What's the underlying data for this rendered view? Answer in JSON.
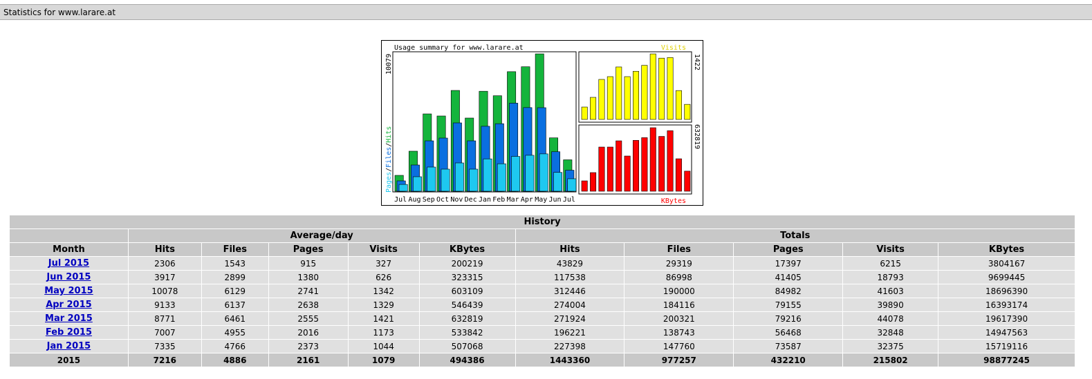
{
  "header": {
    "title": "Statistics for www.larare.at"
  },
  "chart_data": [
    {
      "type": "bar",
      "title": "Usage summary for www.larare.at",
      "separator": "/",
      "categories": [
        "Jul",
        "Aug",
        "Sep",
        "Oct",
        "Nov",
        "Dec",
        "Jan",
        "Feb",
        "Mar",
        "Apr",
        "May",
        "Jun",
        "Jul"
      ],
      "series": [
        {
          "name": "Hits",
          "color": "#14b43c",
          "values": [
            1165,
            2938,
            5673,
            5521,
            7395,
            5369,
            7335,
            7007,
            8771,
            9133,
            10078,
            3917,
            2306
          ]
        },
        {
          "name": "Files",
          "color": "#0a6fe0",
          "values": [
            760,
            1925,
            3697,
            3900,
            5014,
            3697,
            4766,
            4955,
            6461,
            6137,
            6129,
            2899,
            1543
          ]
        },
        {
          "name": "Pages",
          "color": "#1ec8f0",
          "values": [
            500,
            1064,
            1773,
            1621,
            2077,
            1621,
            2373,
            2016,
            2555,
            2638,
            2741,
            1380,
            915
          ]
        }
      ],
      "ylim": [
        0,
        10079
      ]
    },
    {
      "type": "bar",
      "series": [
        {
          "name": "Visits",
          "color": "#ffff00",
          "values": [
            269,
            479,
            868,
            928,
            1138,
            928,
            1044,
            1173,
            1421,
            1329,
            1342,
            626,
            327
          ]
        }
      ],
      "ylim": [
        0,
        1422
      ]
    },
    {
      "type": "bar",
      "series": [
        {
          "name": "KBytes",
          "color": "#ff0000",
          "values": [
            103177,
            185718,
            440220,
            440220,
            502128,
            350810,
            507068,
            533842,
            632819,
            546439,
            603109,
            323315,
            200219
          ]
        }
      ],
      "ylim": [
        0,
        632819
      ]
    }
  ],
  "table": {
    "title": "History",
    "groups": [
      "Average/day",
      "Totals"
    ],
    "columns": [
      "Month",
      "Hits",
      "Files",
      "Pages",
      "Visits",
      "KBytes",
      "Hits",
      "Files",
      "Pages",
      "Visits",
      "KBytes"
    ],
    "rows": [
      [
        "Jul 2015",
        2306,
        1543,
        915,
        327,
        200219,
        43829,
        29319,
        17397,
        6215,
        3804167
      ],
      [
        "Jun 2015",
        3917,
        2899,
        1380,
        626,
        323315,
        117538,
        86998,
        41405,
        18793,
        9699445
      ],
      [
        "May 2015",
        10078,
        6129,
        2741,
        1342,
        603109,
        312446,
        190000,
        84982,
        41603,
        18696390
      ],
      [
        "Apr 2015",
        9133,
        6137,
        2638,
        1329,
        546439,
        274004,
        184116,
        79155,
        39890,
        16393174
      ],
      [
        "Mar 2015",
        8771,
        6461,
        2555,
        1421,
        632819,
        271924,
        200321,
        79216,
        44078,
        19617390
      ],
      [
        "Feb 2015",
        7007,
        4955,
        2016,
        1173,
        533842,
        196221,
        138743,
        56468,
        32848,
        14947563
      ],
      [
        "Jan 2015",
        7335,
        4766,
        2373,
        1044,
        507068,
        227398,
        147760,
        73587,
        32375,
        15719116
      ]
    ],
    "total": [
      "2015",
      7216,
      4886,
      2161,
      1079,
      494386,
      1443360,
      977257,
      432210,
      215802,
      98877245
    ]
  }
}
